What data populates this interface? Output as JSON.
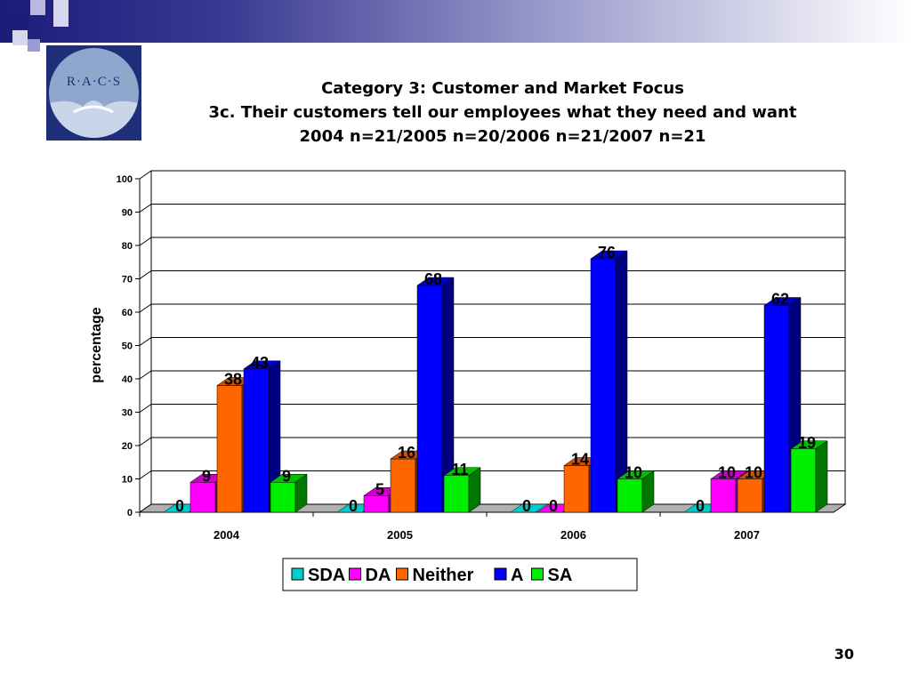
{
  "slide": {
    "logo_text": "R·A·C·S",
    "title_lines": [
      "Category 3: Customer and Market Focus",
      "3c. Their customers tell our employees what they need and want",
      "2004 n=21/2005 n=20/2006 n=21/2007 n=21"
    ],
    "page_number": "30"
  },
  "chart_data": {
    "type": "bar",
    "title": "",
    "xlabel": "",
    "ylabel": "percentage",
    "ylim": [
      0,
      100
    ],
    "yticks": [
      0,
      10,
      20,
      30,
      40,
      50,
      60,
      70,
      80,
      90,
      100
    ],
    "grid": true,
    "legend_position": "bottom",
    "categories": [
      "2004",
      "2005",
      "2006",
      "2007"
    ],
    "series": [
      {
        "name": "SDA",
        "color": "#00cccc",
        "values": [
          0,
          0,
          0,
          0
        ],
        "labels": [
          "0",
          "0",
          "0",
          "0"
        ]
      },
      {
        "name": "DA",
        "color": "#ff00ff",
        "values": [
          9,
          5,
          0,
          10
        ],
        "labels": [
          "9",
          "5",
          "0",
          "10"
        ]
      },
      {
        "name": "Neither",
        "color": "#ff6600",
        "values": [
          38,
          16,
          14,
          10
        ],
        "labels": [
          "38",
          "16",
          "14",
          "10"
        ]
      },
      {
        "name": "A",
        "color": "#0000ff",
        "values": [
          43,
          68,
          76,
          62
        ],
        "labels": [
          "43",
          "68",
          "76",
          "62"
        ]
      },
      {
        "name": "SA",
        "color": "#00ee00",
        "values": [
          9,
          11,
          10,
          19
        ],
        "labels": [
          "9",
          "11",
          "10",
          "19"
        ]
      }
    ]
  }
}
